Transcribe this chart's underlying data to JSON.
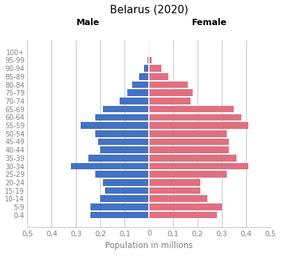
{
  "title": "Belarus (2020)",
  "xlabel": "Population in millions",
  "age_groups": [
    "0-4",
    "5-9",
    "10-14",
    "15-19",
    "20-24",
    "25-29",
    "30-34",
    "35-39",
    "40-44",
    "45-49",
    "50-54",
    "55-59",
    "60-64",
    "65-69",
    "70-74",
    "75-79",
    "80-84",
    "85-89",
    "90-94",
    "95-99",
    "100+"
  ],
  "male": [
    0.24,
    0.24,
    0.2,
    0.18,
    0.19,
    0.22,
    0.32,
    0.25,
    0.2,
    0.21,
    0.22,
    0.28,
    0.22,
    0.19,
    0.12,
    0.09,
    0.07,
    0.04,
    0.02,
    0.005,
    0.001
  ],
  "female": [
    0.28,
    0.3,
    0.24,
    0.21,
    0.21,
    0.32,
    0.41,
    0.36,
    0.33,
    0.33,
    0.32,
    0.41,
    0.38,
    0.35,
    0.17,
    0.18,
    0.16,
    0.08,
    0.05,
    0.01,
    0.001
  ],
  "male_color": "#4472C4",
  "female_color": "#E07080",
  "xlim": 0.5,
  "xtick_positions": [
    -0.5,
    -0.4,
    -0.3,
    -0.2,
    -0.1,
    0.0,
    0.1,
    0.2,
    0.3,
    0.4,
    0.5
  ],
  "xtick_labels": [
    "0,5",
    "0,4",
    "0,3",
    "0,2",
    "0,1",
    "0",
    "0,1",
    "0,2",
    "0,3",
    "0,4",
    "0,5"
  ],
  "male_label": "Male",
  "female_label": "Female",
  "background_color": "#FFFFFF",
  "grid_color": "#C8C8C8"
}
